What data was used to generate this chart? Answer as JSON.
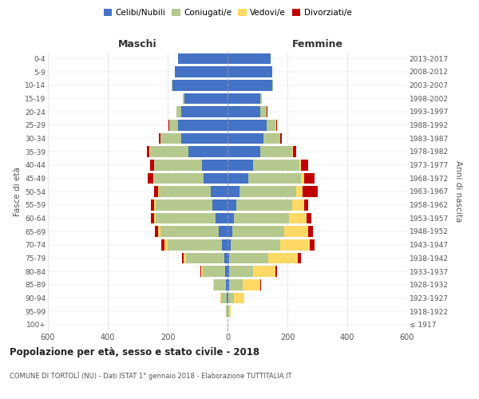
{
  "age_groups": [
    "100+",
    "95-99",
    "90-94",
    "85-89",
    "80-84",
    "75-79",
    "70-74",
    "65-69",
    "60-64",
    "55-59",
    "50-54",
    "45-49",
    "40-44",
    "35-39",
    "30-34",
    "25-29",
    "20-24",
    "15-19",
    "10-14",
    "5-9",
    "0-4"
  ],
  "birth_years": [
    "≤ 1917",
    "1918-1922",
    "1923-1927",
    "1928-1932",
    "1933-1937",
    "1938-1942",
    "1943-1947",
    "1948-1952",
    "1953-1957",
    "1958-1962",
    "1963-1967",
    "1968-1972",
    "1973-1977",
    "1978-1982",
    "1983-1987",
    "1988-1992",
    "1993-1997",
    "1998-2002",
    "2003-2007",
    "2008-2012",
    "2013-2017"
  ],
  "male": {
    "celibi": [
      0,
      1,
      2,
      5,
      8,
      10,
      20,
      30,
      40,
      50,
      55,
      80,
      85,
      130,
      155,
      165,
      155,
      145,
      185,
      175,
      165
    ],
    "coniugati": [
      0,
      4,
      20,
      40,
      75,
      130,
      180,
      195,
      200,
      190,
      175,
      165,
      160,
      130,
      70,
      30,
      15,
      5,
      2,
      0,
      0
    ],
    "vedovi": [
      0,
      0,
      1,
      3,
      5,
      8,
      12,
      8,
      5,
      5,
      3,
      2,
      1,
      1,
      0,
      0,
      0,
      0,
      0,
      0,
      0
    ],
    "divorziati": [
      0,
      0,
      0,
      0,
      2,
      5,
      10,
      10,
      12,
      12,
      12,
      20,
      12,
      8,
      5,
      3,
      2,
      0,
      0,
      0,
      0
    ]
  },
  "female": {
    "nubili": [
      0,
      1,
      2,
      5,
      5,
      5,
      10,
      15,
      20,
      30,
      40,
      70,
      85,
      110,
      120,
      130,
      110,
      110,
      150,
      150,
      145
    ],
    "coniugate": [
      0,
      5,
      20,
      45,
      80,
      130,
      165,
      175,
      185,
      185,
      190,
      175,
      155,
      105,
      55,
      30,
      20,
      5,
      2,
      0,
      0
    ],
    "vedove": [
      0,
      5,
      35,
      60,
      75,
      100,
      100,
      80,
      60,
      40,
      20,
      10,
      5,
      3,
      2,
      2,
      0,
      0,
      0,
      0,
      0
    ],
    "divorziate": [
      0,
      0,
      0,
      2,
      5,
      10,
      15,
      15,
      15,
      15,
      50,
      35,
      25,
      12,
      5,
      2,
      2,
      0,
      0,
      0,
      0
    ]
  },
  "colors": {
    "celibi": "#4472C4",
    "coniugati": "#B5C98E",
    "vedovi": "#FFD966",
    "divorziati": "#C00000"
  },
  "xlim": 600,
  "title": "Popolazione per età, sesso e stato civile - 2018",
  "subtitle": "COMUNE DI TORTOLÌ (NU) - Dati ISTAT 1° gennaio 2018 - Elaborazione TUTTITALIA.IT",
  "ylabel": "Fasce di età",
  "ylabel2": "Anni di nascita",
  "xlabel_maschi": "Maschi",
  "xlabel_femmine": "Femmine",
  "legend_labels": [
    "Celibi/Nubili",
    "Coniugati/e",
    "Vedovi/e",
    "Divorziati/e"
  ],
  "bg_color": "#ffffff",
  "grid_color": "#cccccc"
}
